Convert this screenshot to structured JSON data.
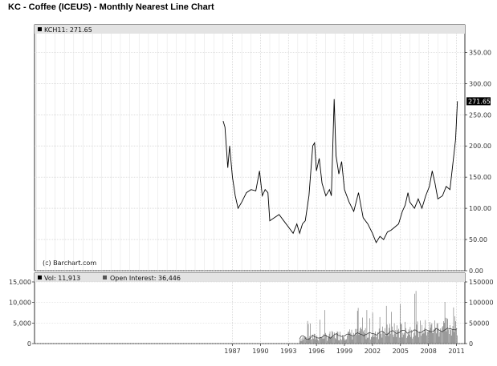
{
  "title": "KC - Coffee (ICEUS) - Monthly Nearest Line Chart",
  "chart_data": [
    {
      "type": "line",
      "legend": "KCH11: 271.65",
      "last_value_label": "271.65",
      "watermark": "(c) Barchart.com",
      "ylim": [
        0,
        380
      ],
      "y_ticks": [
        "350.00",
        "300.00",
        "250.00",
        "200.00",
        "150.00",
        "100.00",
        "50.00",
        "0.00"
      ],
      "y_tick_values": [
        350,
        300,
        250,
        200,
        150,
        100,
        50,
        0
      ],
      "xlim": [
        1965.8,
        2011.9
      ],
      "x_ticks": [
        "1987",
        "1990",
        "1993",
        "1996",
        "1999",
        "2002",
        "2005",
        "2008",
        "2011"
      ],
      "x_tick_values": [
        1987,
        1990,
        1993,
        1996,
        1999,
        2002,
        2005,
        2008,
        2011
      ],
      "series": [
        {
          "points": [
            [
              1986.0,
              240
            ],
            [
              1986.2,
              230
            ],
            [
              1986.5,
              165
            ],
            [
              1986.7,
              200
            ],
            [
              1987.0,
              150
            ],
            [
              1987.3,
              120
            ],
            [
              1987.6,
              100
            ],
            [
              1988.0,
              110
            ],
            [
              1988.5,
              125
            ],
            [
              1989.0,
              130
            ],
            [
              1989.5,
              128
            ],
            [
              1989.9,
              160
            ],
            [
              1990.2,
              120
            ],
            [
              1990.5,
              130
            ],
            [
              1990.8,
              125
            ],
            [
              1991.0,
              80
            ],
            [
              1991.5,
              85
            ],
            [
              1992.0,
              90
            ],
            [
              1992.5,
              80
            ],
            [
              1993.0,
              70
            ],
            [
              1993.5,
              60
            ],
            [
              1993.9,
              75
            ],
            [
              1994.2,
              60
            ],
            [
              1994.5,
              75
            ],
            [
              1994.8,
              80
            ],
            [
              1995.2,
              120
            ],
            [
              1995.6,
              200
            ],
            [
              1995.8,
              205
            ],
            [
              1996.0,
              160
            ],
            [
              1996.3,
              180
            ],
            [
              1996.6,
              140
            ],
            [
              1997.0,
              120
            ],
            [
              1997.4,
              130
            ],
            [
              1997.6,
              120
            ],
            [
              1997.9,
              275
            ],
            [
              1998.1,
              185
            ],
            [
              1998.4,
              155
            ],
            [
              1998.7,
              175
            ],
            [
              1999.0,
              130
            ],
            [
              1999.5,
              110
            ],
            [
              2000.0,
              95
            ],
            [
              2000.5,
              125
            ],
            [
              2001.0,
              85
            ],
            [
              2001.5,
              75
            ],
            [
              2002.0,
              60
            ],
            [
              2002.4,
              45
            ],
            [
              2002.8,
              55
            ],
            [
              2003.2,
              50
            ],
            [
              2003.6,
              62
            ],
            [
              2004.0,
              65
            ],
            [
              2004.4,
              70
            ],
            [
              2004.8,
              75
            ],
            [
              2005.2,
              95
            ],
            [
              2005.5,
              105
            ],
            [
              2005.8,
              125
            ],
            [
              2006.0,
              110
            ],
            [
              2006.5,
              100
            ],
            [
              2006.9,
              115
            ],
            [
              2007.3,
              100
            ],
            [
              2007.7,
              120
            ],
            [
              2008.1,
              135
            ],
            [
              2008.4,
              160
            ],
            [
              2008.7,
              140
            ],
            [
              2009.0,
              115
            ],
            [
              2009.5,
              120
            ],
            [
              2009.9,
              135
            ],
            [
              2010.3,
              130
            ],
            [
              2010.6,
              170
            ],
            [
              2010.9,
              210
            ],
            [
              2011.1,
              271.65
            ]
          ]
        }
      ]
    },
    {
      "type": "bar",
      "legend_vol": "Vol: 11,913",
      "legend_oi": "Open Interest: 36,446",
      "left_ylim": [
        0,
        15000
      ],
      "left_ticks": [
        "15,000",
        "10,000",
        "5,000",
        "0"
      ],
      "left_tick_values": [
        15000,
        10000,
        5000,
        0
      ],
      "right_ylim": [
        0,
        150000
      ],
      "right_ticks": [
        "150000",
        "100000",
        "50000",
        "0"
      ],
      "right_tick_values": [
        150000,
        100000,
        50000,
        0
      ],
      "volume_start": 1994.2,
      "volume_end": 2011.1
    }
  ]
}
